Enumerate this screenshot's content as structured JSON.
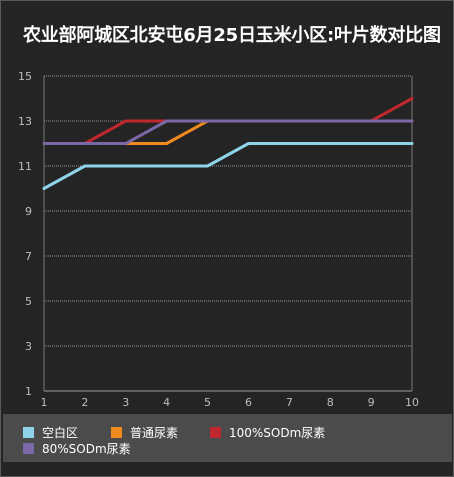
{
  "colors": {
    "background": "#242424",
    "legend_background": "#4b4b4b",
    "text": "#ffffff",
    "axis_text": "#bdbdbd",
    "grid": "#9a9a9a"
  },
  "chart_data": {
    "type": "line",
    "title": "农业部阿城区北安屯6月25日玉米小区:叶片数对比图",
    "xlabel": "",
    "ylabel": "",
    "x": [
      1,
      2,
      3,
      4,
      5,
      6,
      7,
      8,
      9,
      10
    ],
    "xlim": [
      1,
      10
    ],
    "ylim": [
      1,
      15
    ],
    "yticks": [
      1,
      3,
      5,
      7,
      9,
      11,
      13,
      15
    ],
    "grid": true,
    "legend_position": "bottom",
    "series": [
      {
        "name": "空白区",
        "color": "#8ed3ea",
        "values": [
          10,
          11,
          11,
          11,
          11,
          12,
          12,
          12,
          12,
          12
        ]
      },
      {
        "name": "普通尿素",
        "color": "#ee8a1e",
        "values": [
          12,
          12,
          12,
          12,
          13,
          13,
          13,
          13,
          13,
          13
        ]
      },
      {
        "name": "100%SODm尿素",
        "color": "#c0282d",
        "values": [
          12,
          12,
          13,
          13,
          13,
          13,
          13,
          13,
          13,
          14
        ]
      },
      {
        "name": "80%SODm尿素",
        "color": "#7b68a6",
        "values": [
          12,
          12,
          12,
          13,
          13,
          13,
          13,
          13,
          13,
          13
        ]
      }
    ]
  }
}
